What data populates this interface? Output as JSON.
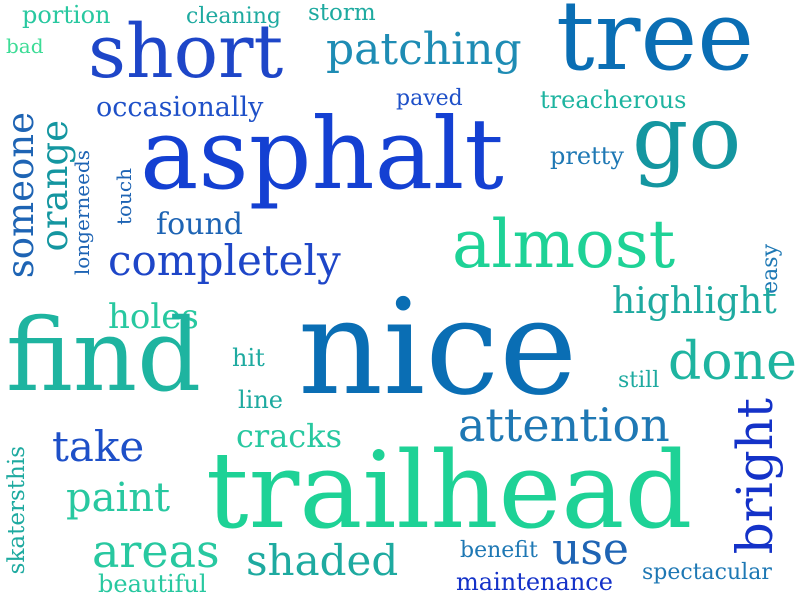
{
  "palette": {
    "royal_blue": "#1432c8",
    "blue": "#1e50d2",
    "steel_blue": "#0a6eb4",
    "teal": "#1496a0",
    "teal_green": "#14b49a",
    "mint": "#1ed296",
    "light_mint": "#3cdc96",
    "background": "#ffffff"
  },
  "words": [
    {
      "text": "portion",
      "color": "#28c8a0"
    },
    {
      "text": "cleaning",
      "color": "#1eaaa0"
    },
    {
      "text": "storm",
      "color": "#1eaaa0"
    },
    {
      "text": "bad",
      "color": "#3cdc96"
    },
    {
      "text": "short",
      "color": "#1e46c8"
    },
    {
      "text": "patching",
      "color": "#1e8cb4"
    },
    {
      "text": "tree",
      "color": "#0a6eb4"
    },
    {
      "text": "occasionally",
      "color": "#1e50c8"
    },
    {
      "text": "paved",
      "color": "#1e50c8"
    },
    {
      "text": "treacherous",
      "color": "#1eb4a0"
    },
    {
      "text": "someone",
      "color": "#1e64b4"
    },
    {
      "text": "orange",
      "color": "#1496a0"
    },
    {
      "text": "asphalt",
      "color": "#1440d2"
    },
    {
      "text": "pretty",
      "color": "#1e78b4"
    },
    {
      "text": "go",
      "color": "#1496a0"
    },
    {
      "text": "longerneeds",
      "color": "#1e64b4"
    },
    {
      "text": "touch",
      "color": "#1e64b4"
    },
    {
      "text": "found",
      "color": "#1e64b4"
    },
    {
      "text": "completely",
      "color": "#1e46c8"
    },
    {
      "text": "almost",
      "color": "#1ed296"
    },
    {
      "text": "easy",
      "color": "#1e78b4"
    },
    {
      "text": "highlight",
      "color": "#1eaaa0"
    },
    {
      "text": "holes",
      "color": "#28c8a0"
    },
    {
      "text": "find",
      "color": "#1eb4a0"
    },
    {
      "text": "nice",
      "color": "#0a6eb4"
    },
    {
      "text": "hit",
      "color": "#1eaaa0"
    },
    {
      "text": "still",
      "color": "#1eaaa0"
    },
    {
      "text": "done",
      "color": "#1eb4a0"
    },
    {
      "text": "line",
      "color": "#1eaaa0"
    },
    {
      "text": "attention",
      "color": "#1e78b4"
    },
    {
      "text": "bright",
      "color": "#1432c8"
    },
    {
      "text": "take",
      "color": "#1e50c8"
    },
    {
      "text": "cracks",
      "color": "#28c8a0"
    },
    {
      "text": "trailhead",
      "color": "#1ed296"
    },
    {
      "text": "paint",
      "color": "#28c8a0"
    },
    {
      "text": "skatersthis",
      "color": "#1eaaa0"
    },
    {
      "text": "areas",
      "color": "#28c8a0"
    },
    {
      "text": "shaded",
      "color": "#1eaaa0"
    },
    {
      "text": "benefit",
      "color": "#1e78b4"
    },
    {
      "text": "use",
      "color": "#1e64b4"
    },
    {
      "text": "beautiful",
      "color": "#28c8a0"
    },
    {
      "text": "maintenance",
      "color": "#1432c8"
    },
    {
      "text": "spectacular",
      "color": "#1e78b4"
    }
  ]
}
